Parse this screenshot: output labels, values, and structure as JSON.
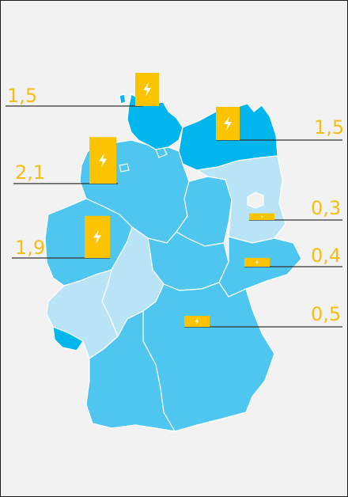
{
  "title": "",
  "colors": {
    "background": "#f2f2f2",
    "state_dark": "#00b6ec",
    "state_mid": "#4fc6ef",
    "state_light": "#b9e4f7",
    "state_medium_light": "#8fd4f2",
    "marker": "#fcc300",
    "marker_icon": "#ffffff",
    "leader_line": "#333333",
    "label": "#f6bd16",
    "border": "#ffffff"
  },
  "markers": [
    {
      "id": "schleswig-holstein",
      "value": "1,5",
      "icon": "lightning-bolt-icon",
      "level": 1.5
    },
    {
      "id": "mecklenburg-vorpommern",
      "value": "1,5",
      "icon": "lightning-bolt-icon",
      "level": 1.5
    },
    {
      "id": "niedersachsen",
      "value": "2,1",
      "icon": "lightning-bolt-icon",
      "level": 2.1
    },
    {
      "id": "nordrhein-westfalen",
      "value": "1,9",
      "icon": "lightning-bolt-icon",
      "level": 1.9
    },
    {
      "id": "brandenburg",
      "value": "0,3",
      "icon": "lightning-bolt-icon",
      "level": 0.3
    },
    {
      "id": "sachsen",
      "value": "0,4",
      "icon": "lightning-bolt-icon",
      "level": 0.4
    },
    {
      "id": "bayern",
      "value": "0,5",
      "icon": "lightning-bolt-icon",
      "level": 0.5
    }
  ]
}
